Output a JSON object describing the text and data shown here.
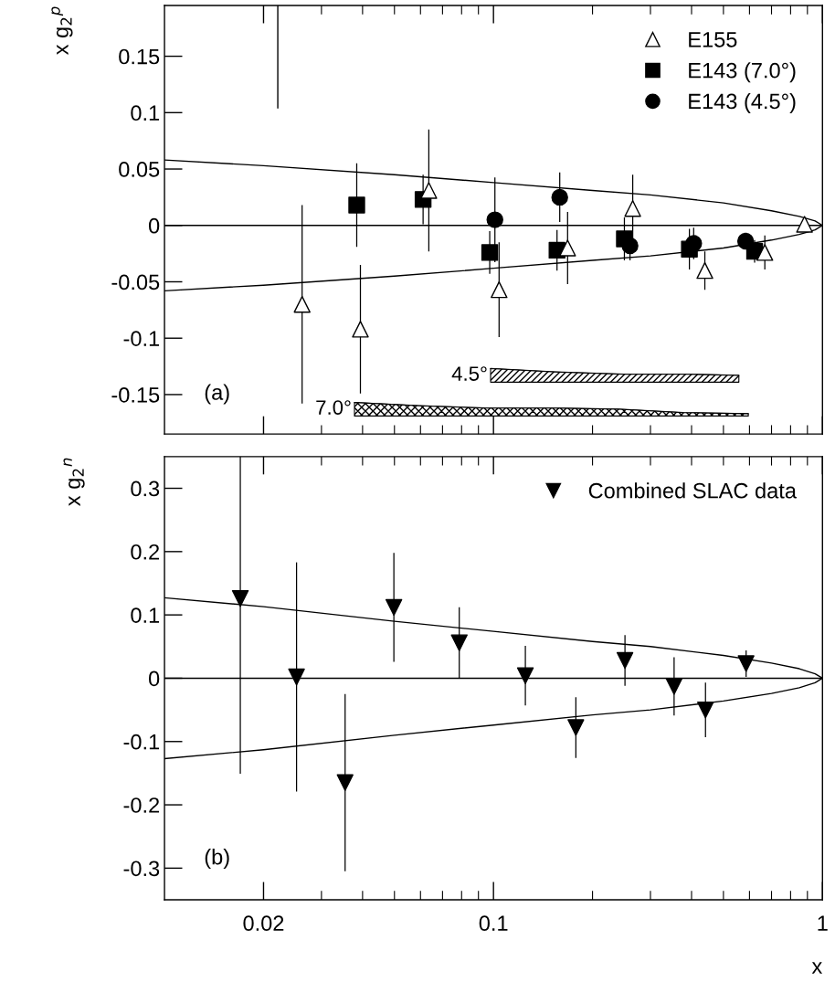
{
  "chart_data": [
    {
      "type": "scatter",
      "ylabel": "x g$_{2}$$^{p}$",
      "log": "x",
      "xlim": [
        0.01,
        1
      ],
      "xticks": [
        0.02,
        0.1,
        1
      ],
      "ylim": [
        -0.185,
        0.195
      ],
      "yticks": [
        -0.15,
        -0.1,
        -0.05,
        0,
        0.05,
        0.1,
        0.15
      ],
      "tick_labels": "y",
      "legend": "top right",
      "annotations": [
        "(a)"
      ],
      "ref_lines": [
        {
          "axis": "y",
          "value": 0,
          "color": "#000000"
        }
      ],
      "series": [
        {
          "name": "E155",
          "marker": "triangle",
          "color": "#ffffff",
          "x": [
            0.0262,
            0.0394,
            0.0636,
            0.104,
            0.168,
            0.265,
            0.439,
            0.668,
            0.882
          ],
          "values": [
            -0.07,
            -0.092,
            0.031,
            -0.057,
            -0.02,
            0.015,
            -0.04,
            -0.024,
            0.001
          ],
          "errors": [
            0.088,
            0.057,
            0.054,
            0.042,
            0.032,
            0.03,
            0.017,
            0.015,
            0.003
          ]
        },
        {
          "name": "E143 (7.0°)",
          "marker": "square",
          "color": "#000000",
          "x": [
            0.0384,
            0.0611,
            0.0974,
            0.156,
            0.25,
            0.394,
            0.622
          ],
          "values": [
            0.018,
            0.023,
            -0.024,
            -0.022,
            -0.012,
            -0.021,
            -0.023
          ],
          "errors": [
            0.037,
            0.022,
            0.019,
            0.018,
            0.019,
            0.018,
            0.01
          ]
        },
        {
          "name": "E143 (4.5°)",
          "marker": "circle",
          "color": "#000000",
          "x": [
            0.101,
            0.159,
            0.26,
            0.406,
            0.584
          ],
          "values": [
            0.005,
            0.025,
            -0.018,
            -0.016,
            -0.014
          ],
          "errors": [
            0.0375,
            0.022,
            0.013,
            0.014,
            0.006
          ]
        },
        {
          "type": "line",
          "color": "#000000",
          "x": [
            0.01,
            0.02,
            0.05,
            0.1,
            0.2,
            0.3,
            0.5,
            0.7,
            0.85,
            0.95,
            1
          ],
          "values": [
            0.058,
            0.053,
            0.045,
            0.038,
            0.031,
            0.027,
            0.02,
            0.013,
            0.008,
            0.004,
            0
          ]
        },
        {
          "type": "line",
          "color": "#000000",
          "x": [
            0.01,
            0.02,
            0.05,
            0.1,
            0.2,
            0.3,
            0.5,
            0.7,
            0.85,
            0.95,
            1
          ],
          "values": [
            -0.058,
            -0.053,
            -0.045,
            -0.038,
            -0.031,
            -0.027,
            -0.02,
            -0.013,
            -0.008,
            -0.004,
            0
          ]
        },
        {
          "type": "line",
          "color": "#000000",
          "x": [
            0.0221,
            0.0221
          ],
          "values": [
            0.104,
            0.195
          ]
        },
        {
          "name": "4.5°",
          "type": "line",
          "color": "#000000",
          "x": [
            0.098,
            0.154,
            0.249,
            0.39,
            0.557
          ],
          "values": [
            -0.127,
            -0.13,
            -0.132,
            -0.132,
            -0.133
          ],
          "upper": [
            -0.127,
            -0.13,
            -0.132,
            -0.132,
            -0.133
          ],
          "lower": [
            -0.139,
            -0.139,
            -0.139,
            -0.139,
            -0.139
          ]
        },
        {
          "name": "7.0°",
          "type": "line",
          "color": "#000000",
          "x": [
            0.0378,
            0.0595,
            0.0947,
            0.152,
            0.24,
            0.377,
            0.595
          ],
          "values": [
            -0.157,
            -0.16,
            -0.162,
            -0.162,
            -0.163,
            -0.166,
            -0.167
          ],
          "upper": [
            -0.157,
            -0.16,
            -0.162,
            -0.162,
            -0.163,
            -0.166,
            -0.167
          ],
          "lower": [
            -0.169,
            -0.169,
            -0.169,
            -0.169,
            -0.169,
            -0.169,
            -0.169
          ]
        }
      ]
    },
    {
      "type": "scatter",
      "ylabel": "x g$_{2}$$^{n}$",
      "xlabel": "x",
      "log": "x",
      "xlim": [
        0.01,
        1
      ],
      "xticks": [
        0.02,
        0.1,
        1
      ],
      "ylim": [
        -0.35,
        0.35
      ],
      "yticks": [
        -0.3,
        -0.2,
        -0.1,
        0,
        0.1,
        0.2,
        0.3
      ],
      "legend": "top right",
      "annotations": [
        "(b)"
      ],
      "ref_lines": [
        {
          "axis": "y",
          "value": 0,
          "color": "#000000"
        }
      ],
      "series": [
        {
          "name": "Combined SLAC data",
          "marker": "triangle-down",
          "color": "#000000",
          "x": [
            0.017,
            0.0252,
            0.0354,
            0.0498,
            0.0787,
            0.125,
            0.178,
            0.251,
            0.354,
            0.441,
            0.586
          ],
          "values": [
            0.126,
            0.002,
            -0.165,
            0.112,
            0.056,
            0.004,
            -0.078,
            0.028,
            -0.013,
            -0.05,
            0.023
          ],
          "errors": [
            [
              -0.151,
              0.35
            ],
            0.181,
            0.14,
            0.086,
            0.056,
            0.047,
            0.048,
            0.04,
            0.046,
            0.043,
            0.021
          ]
        },
        {
          "type": "line",
          "color": "#000000",
          "x": [
            0.01,
            0.02,
            0.05,
            0.1,
            0.2,
            0.3,
            0.5,
            0.7,
            0.85,
            0.95,
            1
          ],
          "values": [
            0.127,
            0.113,
            0.09,
            0.074,
            0.058,
            0.05,
            0.036,
            0.024,
            0.015,
            0.007,
            0
          ]
        },
        {
          "type": "line",
          "color": "#000000",
          "x": [
            0.01,
            0.02,
            0.05,
            0.1,
            0.2,
            0.3,
            0.5,
            0.7,
            0.85,
            0.95,
            1
          ],
          "values": [
            -0.127,
            -0.113,
            -0.09,
            -0.074,
            -0.058,
            -0.05,
            -0.036,
            -0.024,
            -0.015,
            -0.007,
            0
          ]
        }
      ]
    }
  ]
}
